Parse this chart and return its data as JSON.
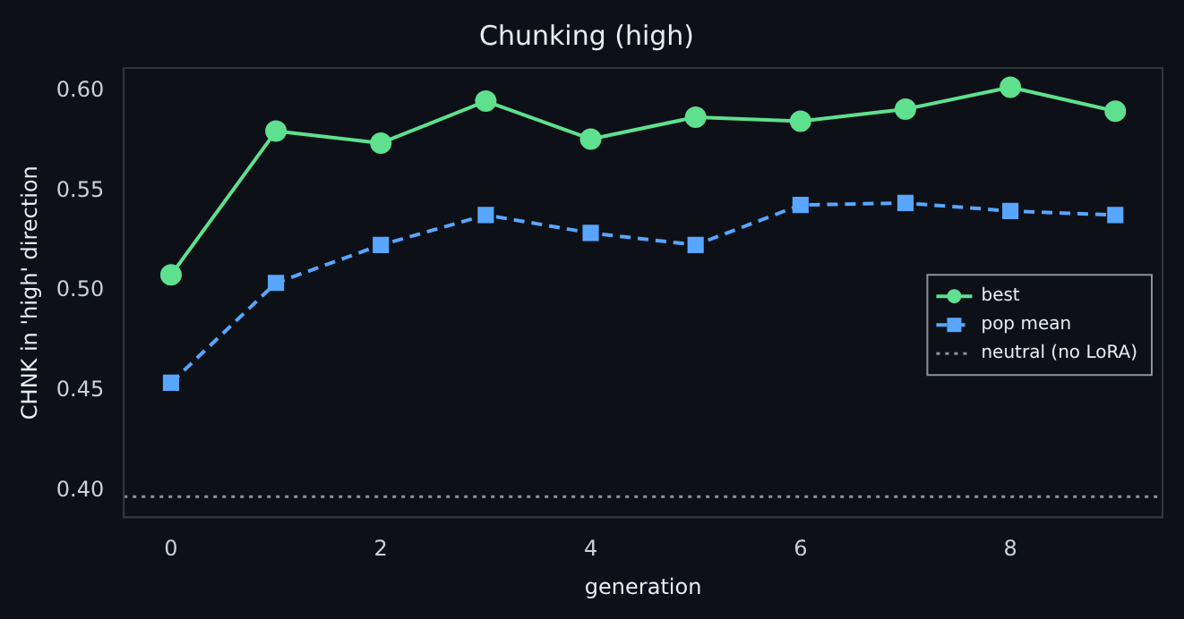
{
  "chart_data": {
    "type": "line",
    "title": "Chunking (high)",
    "xlabel": "generation",
    "ylabel": "CHNK in 'high' direction",
    "x": [
      0,
      1,
      2,
      3,
      4,
      5,
      6,
      7,
      8,
      9
    ],
    "series": [
      {
        "name": "best",
        "color": "#5ee08f",
        "marker": "circle",
        "line_style": "solid",
        "values": [
          0.508,
          0.58,
          0.574,
          0.595,
          0.576,
          0.587,
          0.585,
          0.591,
          0.602,
          0.59
        ]
      },
      {
        "name": "pop mean",
        "color": "#58a6ff",
        "marker": "square",
        "line_style": "dashed",
        "values": [
          0.454,
          0.504,
          0.523,
          0.538,
          0.529,
          0.523,
          0.543,
          0.544,
          0.54,
          0.538
        ]
      }
    ],
    "ref_lines": [
      {
        "axis": "y",
        "value": 0.397,
        "label": "neutral (no LoRA)",
        "color": "#8b949e",
        "line_style": "dotted"
      }
    ],
    "xlim": [
      -0.45,
      9.45
    ],
    "xticks": [
      0,
      2,
      4,
      6,
      8
    ],
    "ylim": [
      0.3866,
      0.6116
    ],
    "yticks": [
      {
        "value": 0.4,
        "label": "0.40"
      },
      {
        "value": 0.45,
        "label": "0.45"
      },
      {
        "value": 0.5,
        "label": "0.50"
      },
      {
        "value": 0.55,
        "label": "0.55"
      },
      {
        "value": 0.6,
        "label": "0.60"
      }
    ],
    "grid": false,
    "legend": "right"
  }
}
